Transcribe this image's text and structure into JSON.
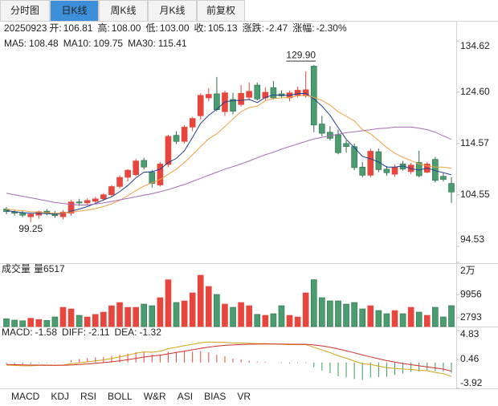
{
  "tabs": [
    "分时图",
    "日K线",
    "周K线",
    "月K线",
    "前复权"
  ],
  "active_tab": 1,
  "header": {
    "date": "20250923",
    "fields": [
      {
        "label": "开:",
        "value": "106.81",
        "color": "#2e8b57"
      },
      {
        "label": "高:",
        "value": "108.00",
        "color": "#e23b33"
      },
      {
        "label": "低:",
        "value": "103.00",
        "color": "#2e8b57"
      },
      {
        "label": "收:",
        "value": "105.13",
        "color": "#2e8b57"
      },
      {
        "label": "涨跌:",
        "value": "-2.47",
        "color": "#2e8b57"
      },
      {
        "label": "涨幅:",
        "value": "-2.30%",
        "color": "#2e8b57"
      }
    ]
  },
  "chart_data": [
    {
      "type": "candlestick",
      "up_color": "#e8453c",
      "down_color": "#4a9d6f",
      "open": [
        101.8,
        101.3,
        101.0,
        100.3,
        100.6,
        101.4,
        101.0,
        100.3,
        101.0,
        103.2,
        103.0,
        103.3,
        103.8,
        104.6,
        106.2,
        108.0,
        108.5,
        111.3,
        109.0,
        106.5,
        110.5,
        116.2,
        115.0,
        117.8,
        120.0,
        123.5,
        124.3,
        120.8,
        123.2,
        122.2,
        123.6,
        126.0,
        123.5,
        125.5,
        124.3,
        123.5,
        124.0,
        123.9,
        129.7,
        118.4,
        116.8,
        116.3,
        114.6,
        114.0,
        110.0,
        108.4,
        113.0,
        109.6,
        108.6,
        110.6,
        109.1,
        110.9,
        109.0,
        111.5,
        108.2,
        106.81
      ],
      "high": [
        102.2,
        101.7,
        101.5,
        101.0,
        101.5,
        101.8,
        101.4,
        101.6,
        103.6,
        103.8,
        103.9,
        104.2,
        104.9,
        106.5,
        108.4,
        109.6,
        111.6,
        111.8,
        109.4,
        111.0,
        116.3,
        117.0,
        118.2,
        119.8,
        124.4,
        125.4,
        127.6,
        124.9,
        124.5,
        126.0,
        126.5,
        126.5,
        125.6,
        126.8,
        125.0,
        124.9,
        125.7,
        128.7,
        129.9,
        120.0,
        118.0,
        117.3,
        115.2,
        114.6,
        111.0,
        113.6,
        113.6,
        110.2,
        110.5,
        111.2,
        110.8,
        113.2,
        111.0,
        112.0,
        108.9,
        108.0
      ],
      "low": [
        100.8,
        100.5,
        100.2,
        99.25,
        99.9,
        100.6,
        100.1,
        99.8,
        100.5,
        102.4,
        102.5,
        102.8,
        103.4,
        104.2,
        105.8,
        107.2,
        108.2,
        109.5,
        106.0,
        106.2,
        110.0,
        114.5,
        114.6,
        117.0,
        119.2,
        122.8,
        120.9,
        120.0,
        120.3,
        121.8,
        123.0,
        123.0,
        123.0,
        123.2,
        123.4,
        122.8,
        123.6,
        123.5,
        116.8,
        116.0,
        115.2,
        112.5,
        112.8,
        109.4,
        108.0,
        108.0,
        109.0,
        108.3,
        108.1,
        109.3,
        108.6,
        108.0,
        108.8,
        107.0,
        107.2,
        103.0
      ],
      "close": [
        101.3,
        101.0,
        100.6,
        100.8,
        101.3,
        101.0,
        100.5,
        101.2,
        103.2,
        103.0,
        103.5,
        103.8,
        104.6,
        106.2,
        108.0,
        109.4,
        111.2,
        110.0,
        106.8,
        110.6,
        116.0,
        115.0,
        117.8,
        119.5,
        124.0,
        124.2,
        121.2,
        124.5,
        120.9,
        124.4,
        124.8,
        123.3,
        124.6,
        123.5,
        123.9,
        124.5,
        125.0,
        125.1,
        118.2,
        116.6,
        115.6,
        112.8,
        114.0,
        109.9,
        108.4,
        113.1,
        109.5,
        108.9,
        110.0,
        109.6,
        110.4,
        108.3,
        110.6,
        107.4,
        107.6,
        105.13
      ],
      "series": [
        {
          "name": "MA5:",
          "color": "#1f3f91",
          "values": [
            101.5,
            101.3,
            101.1,
            101.0,
            101.0,
            100.9,
            100.8,
            100.9,
            101.4,
            101.8,
            102.3,
            102.9,
            103.6,
            104.2,
            105.2,
            106.4,
            107.9,
            109.0,
            109.1,
            109.6,
            110.9,
            111.7,
            113.2,
            115.8,
            118.5,
            120.1,
            121.3,
            122.7,
            123.0,
            123.0,
            123.2,
            122.6,
            123.6,
            124.1,
            124.0,
            124.0,
            124.3,
            124.4,
            123.3,
            121.9,
            120.1,
            117.7,
            115.4,
            113.8,
            112.1,
            111.6,
            111.0,
            110.0,
            110.0,
            110.2,
            109.7,
            109.4,
            109.8,
            109.3,
            108.9,
            108.48
          ]
        },
        {
          "name": "MA10:",
          "color": "#f0a040",
          "values": [
            101.8,
            101.6,
            101.5,
            101.3,
            101.2,
            101.1,
            101.0,
            101.0,
            101.2,
            101.4,
            101.6,
            101.9,
            102.3,
            102.8,
            103.5,
            104.4,
            105.4,
            106.3,
            106.9,
            107.6,
            108.6,
            109.6,
            110.9,
            112.4,
            114.0,
            115.5,
            116.5,
            117.9,
            119.4,
            120.8,
            121.6,
            121.9,
            122.9,
            123.4,
            123.5,
            123.6,
            123.9,
            124.0,
            123.6,
            123.0,
            122.1,
            120.8,
            119.9,
            119.0,
            117.3,
            116.5,
            115.2,
            113.8,
            112.7,
            111.9,
            111.3,
            110.6,
            110.2,
            110.0,
            110.0,
            109.75
          ]
        },
        {
          "name": "MA30:",
          "color": "#a96ab5",
          "values": [
            104.9,
            104.6,
            104.3,
            104.0,
            103.7,
            103.4,
            103.1,
            102.9,
            102.7,
            102.6,
            102.6,
            102.8,
            103.0,
            103.3,
            103.6,
            103.9,
            104.2,
            104.5,
            104.8,
            105.2,
            105.6,
            106.1,
            106.6,
            107.2,
            107.8,
            108.4,
            109.0,
            109.6,
            110.1,
            110.6,
            111.2,
            111.8,
            112.4,
            112.9,
            113.5,
            114.0,
            114.5,
            115.0,
            115.5,
            115.8,
            116.1,
            116.4,
            116.7,
            116.9,
            117.1,
            117.3,
            117.5,
            117.6,
            117.8,
            117.8,
            117.8,
            117.6,
            117.3,
            116.8,
            116.1,
            115.41
          ]
        }
      ],
      "ylim": [
        94.53,
        134.62
      ],
      "yticks": [
        134.62,
        {
          "value": 124.6,
          "label": "124.60"
        },
        114.57,
        104.55,
        94.53
      ],
      "annotations": [
        {
          "value": 129.9,
          "label": "129.90",
          "at": "high"
        },
        {
          "value": 99.25,
          "label": "99.25",
          "at": "low"
        }
      ]
    },
    {
      "type": "bar",
      "title": "成交量",
      "value_prefix": "量",
      "values": [
        2400,
        2000,
        1800,
        2600,
        2200,
        1900,
        3000,
        6000,
        5500,
        3500,
        3000,
        3800,
        4500,
        6500,
        7500,
        6000,
        6000,
        7000,
        6500,
        9000,
        14600,
        7500,
        8000,
        10500,
        16000,
        12500,
        10000,
        7000,
        6000,
        7500,
        6500,
        3800,
        3500,
        4000,
        6500,
        3500,
        3000,
        10500,
        14600,
        9000,
        8000,
        8000,
        7000,
        7500,
        5500,
        6500,
        5000,
        4000,
        5000,
        4000,
        6000,
        4500,
        3500,
        6000,
        3000,
        6517
      ],
      "ylim": [
        0,
        20000
      ],
      "yticks": [
        {
          "value": 20000,
          "label": "2万"
        },
        9956,
        2793
      ]
    },
    {
      "type": "macd",
      "title": "MACD:",
      "up_color": "#e8453c",
      "down_color": "#3a9b5c",
      "values": [
        -0.2,
        -0.24,
        -0.28,
        -0.22,
        -0.1,
        -0.08,
        -0.06,
        0.04,
        0.36,
        0.52,
        0.66,
        0.76,
        0.84,
        1.0,
        1.2,
        1.36,
        1.56,
        1.56,
        1.18,
        1.18,
        1.58,
        1.58,
        1.66,
        1.66,
        1.72,
        1.54,
        1.16,
        0.92,
        0.58,
        0.46,
        0.28,
        0.14,
        0.1,
        0,
        -0.08,
        -0.14,
        -0.12,
        -0.1,
        -0.72,
        -1.22,
        -1.62,
        -2.1,
        -2.24,
        -2.52,
        -2.66,
        -2.28,
        -2.22,
        -2.18,
        -1.9,
        -1.68,
        -1.42,
        -1.38,
        -1.18,
        -1.34,
        -1.4,
        -1.58
      ],
      "series": [
        {
          "name": "DIFF:",
          "color": "#d4a418",
          "values": [
            -0.4,
            -0.45,
            -0.5,
            -0.5,
            -0.45,
            -0.45,
            -0.45,
            -0.4,
            -0.2,
            -0.05,
            0.1,
            0.25,
            0.4,
            0.6,
            0.85,
            1.1,
            1.4,
            1.6,
            1.55,
            1.7,
            2.1,
            2.3,
            2.55,
            2.75,
            3.0,
            3.1,
            3.05,
            3.05,
            2.95,
            2.95,
            2.9,
            2.85,
            2.85,
            2.8,
            2.75,
            2.7,
            2.7,
            2.7,
            2.3,
            1.9,
            1.5,
            1.0,
            0.65,
            0.2,
            -0.2,
            -0.3,
            -0.55,
            -0.8,
            -0.9,
            -1.0,
            -1.05,
            -1.2,
            -1.25,
            -1.5,
            -1.7,
            -2.11
          ]
        },
        {
          "name": "DEA:",
          "color": "#d0302a",
          "values": [
            -0.3,
            -0.33,
            -0.36,
            -0.39,
            -0.4,
            -0.41,
            -0.42,
            -0.42,
            -0.38,
            -0.31,
            -0.23,
            -0.13,
            -0.02,
            0.1,
            0.25,
            0.42,
            0.62,
            0.82,
            0.96,
            1.11,
            1.31,
            1.51,
            1.72,
            1.92,
            2.14,
            2.33,
            2.47,
            2.59,
            2.66,
            2.72,
            2.76,
            2.78,
            2.8,
            2.8,
            2.79,
            2.77,
            2.76,
            2.75,
            2.66,
            2.51,
            2.31,
            2.05,
            1.77,
            1.46,
            1.13,
            0.84,
            0.56,
            0.29,
            0.05,
            -0.16,
            -0.34,
            -0.51,
            -0.66,
            -0.83,
            -1.0,
            -1.32
          ]
        }
      ],
      "ylim": [
        -3.92,
        4.83
      ],
      "yticks": [
        4.83,
        0.46,
        -3.92
      ]
    }
  ],
  "indicator_tabs": [
    "MACD",
    "KDJ",
    "RSI",
    "BOLL",
    "W&R",
    "ASI",
    "BIAS",
    "VR"
  ],
  "active_indicator": 0
}
